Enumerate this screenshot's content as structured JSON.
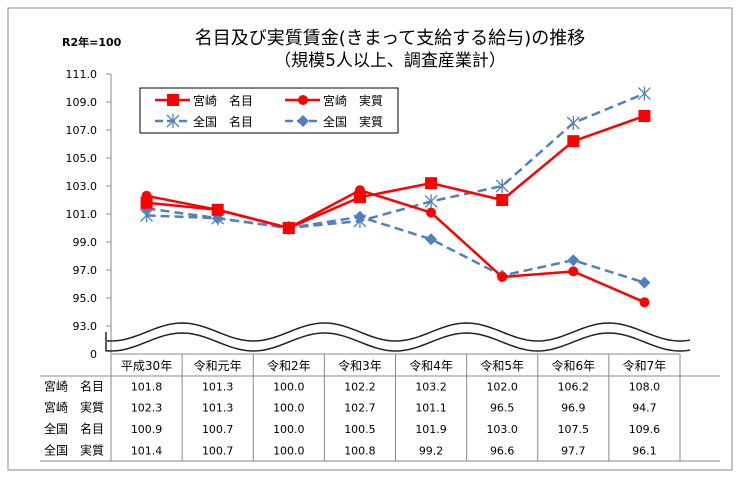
{
  "chart_data": {
    "type": "line",
    "title": "名目及び実質賃金(きまって支給する給与)の推移",
    "subtitle": "（規模5人以上、調査産業計）",
    "ylabel": "R2年=100",
    "ylim": [
      93.0,
      111.0
    ],
    "y_break_label": "0",
    "yticks": [
      "111.0",
      "109.0",
      "107.0",
      "105.0",
      "103.0",
      "101.0",
      "99.0",
      "97.0",
      "95.0",
      "93.0"
    ],
    "categories": [
      "平成30年",
      "令和元年",
      "令和2年",
      "令和3年",
      "令和4年",
      "令和5年",
      "令和6年",
      "令和7年"
    ],
    "legend_position": "top-left",
    "grid": false,
    "series": [
      {
        "name": "宮崎　名目",
        "color": "#ff0000",
        "marker": "square",
        "dash": false,
        "values": [
          101.8,
          101.3,
          100.0,
          102.2,
          103.2,
          102.0,
          106.2,
          108.0
        ],
        "labels": [
          "101.8",
          "101.3",
          "100.0",
          "102.2",
          "103.2",
          "102.0",
          "106.2",
          "108.0"
        ]
      },
      {
        "name": "宮崎　実質",
        "color": "#ff0000",
        "marker": "circle",
        "dash": false,
        "values": [
          102.3,
          101.3,
          100.0,
          102.7,
          101.1,
          96.5,
          96.9,
          94.7
        ],
        "labels": [
          "102.3",
          "101.3",
          "100.0",
          "102.7",
          "101.1",
          "96.5",
          "96.9",
          "94.7"
        ]
      },
      {
        "name": "全国　名目",
        "color": "#4f81bd",
        "marker": "asterisk",
        "dash": true,
        "values": [
          100.9,
          100.7,
          100.0,
          100.5,
          101.9,
          103.0,
          107.5,
          109.6
        ],
        "labels": [
          "100.9",
          "100.7",
          "100.0",
          "100.5",
          "101.9",
          "103.0",
          "107.5",
          "109.6"
        ]
      },
      {
        "name": "全国　実質",
        "color": "#4f81bd",
        "marker": "diamond",
        "dash": true,
        "values": [
          101.4,
          100.7,
          100.0,
          100.8,
          99.2,
          96.6,
          97.7,
          96.1
        ],
        "labels": [
          "101.4",
          "100.7",
          "100.0",
          "100.8",
          "99.2",
          "96.6",
          "97.7",
          "96.1"
        ]
      }
    ]
  }
}
